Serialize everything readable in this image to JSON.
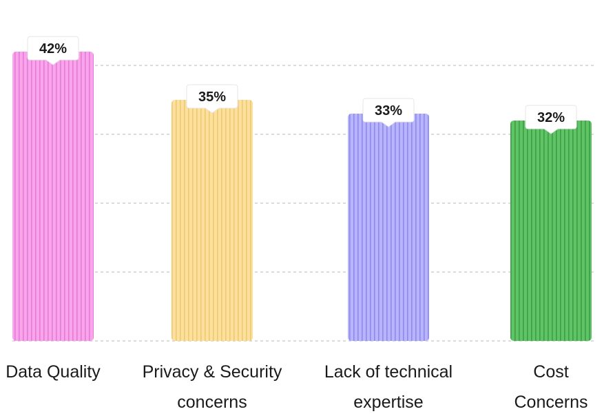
{
  "chart_data": {
    "type": "bar",
    "categories": [
      [
        "Data Quality"
      ],
      [
        "Privacy & Security",
        "concerns"
      ],
      [
        "Lack of technical",
        "expertise"
      ],
      [
        "Cost",
        "Concerns"
      ]
    ],
    "values": [
      42,
      35,
      33,
      32
    ],
    "value_labels": [
      "42%",
      "35%",
      "33%",
      "32%"
    ],
    "colors": [
      {
        "base": "#f7a6ea",
        "stripe": "#ea77d9"
      },
      {
        "base": "#fbe0a0",
        "stripe": "#f1c96a"
      },
      {
        "base": "#b9b5fb",
        "stripe": "#8d88f2"
      },
      {
        "base": "#5ec466",
        "stripe": "#3e9c44"
      }
    ],
    "ylim": [
      0,
      50
    ],
    "grid": true,
    "title": "",
    "xlabel": "",
    "ylabel": ""
  }
}
